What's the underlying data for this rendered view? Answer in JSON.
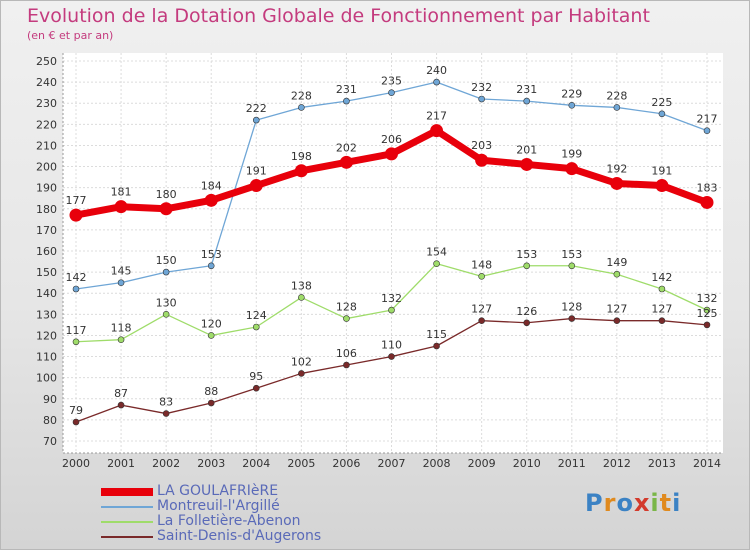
{
  "title": "Evolution de la Dotation Globale de Fonctionnement par Habitant",
  "subtitle": "(en € et par an)",
  "logo": {
    "text": "Proxiti",
    "letters": [
      {
        "ch": "P",
        "color": "#3b82c4"
      },
      {
        "ch": "r",
        "color": "#e08a1e"
      },
      {
        "ch": "o",
        "color": "#3b82c4"
      },
      {
        "ch": "x",
        "color": "#d33a2c"
      },
      {
        "ch": "i",
        "color": "#7ab648"
      },
      {
        "ch": "t",
        "color": "#e08a1e"
      },
      {
        "ch": "i",
        "color": "#3b82c4"
      }
    ]
  },
  "chart_data": {
    "type": "line",
    "title": "Evolution de la Dotation Globale de Fonctionnement par Habitant",
    "subtitle": "(en € et par an)",
    "x": [
      "2000",
      "2001",
      "2002",
      "2003",
      "2004",
      "2005",
      "2006",
      "2007",
      "2008",
      "2009",
      "2010",
      "2011",
      "2012",
      "2013",
      "2014"
    ],
    "ylim": [
      70,
      250
    ],
    "yticks": [
      70,
      80,
      90,
      100,
      110,
      120,
      130,
      140,
      150,
      160,
      170,
      180,
      190,
      200,
      210,
      220,
      230,
      240,
      250
    ],
    "grid": true,
    "legend_position": "bottom-left",
    "series": [
      {
        "name": "LA GOULAFRIèRE",
        "color": "#e8000b",
        "highlight": true,
        "values": [
          177,
          181,
          180,
          184,
          191,
          198,
          202,
          206,
          217,
          203,
          201,
          199,
          192,
          191,
          183
        ]
      },
      {
        "name": "Montreuil-l'Argillé",
        "color": "#6fa6d6",
        "highlight": false,
        "values": [
          142,
          145,
          150,
          153,
          222,
          228,
          231,
          235,
          240,
          232,
          231,
          229,
          228,
          225,
          217
        ]
      },
      {
        "name": "La Folletière-Abenon",
        "color": "#9fdc6a",
        "highlight": false,
        "values": [
          117,
          118,
          130,
          120,
          124,
          138,
          128,
          132,
          154,
          148,
          153,
          153,
          149,
          142,
          132
        ]
      },
      {
        "name": "Saint-Denis-d'Augerons",
        "color": "#7a2a2a",
        "highlight": false,
        "values": [
          79,
          87,
          83,
          88,
          95,
          102,
          106,
          110,
          115,
          127,
          126,
          128,
          127,
          127,
          125
        ]
      }
    ]
  }
}
